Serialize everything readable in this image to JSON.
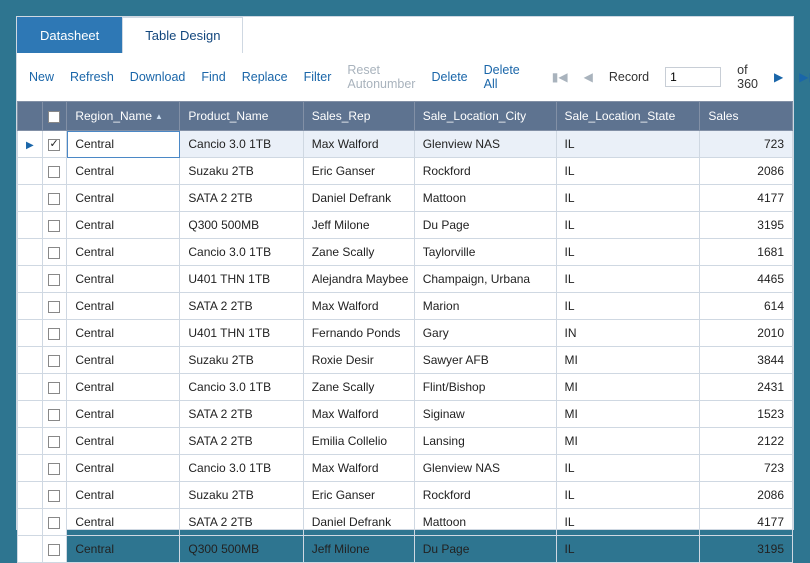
{
  "tabs": {
    "datasheet": "Datasheet",
    "design": "Table Design"
  },
  "toolbar": {
    "new": "New",
    "refresh": "Refresh",
    "download": "Download",
    "find": "Find",
    "replace": "Replace",
    "filter": "Filter",
    "reset": "Reset Autonumber",
    "delete": "Delete",
    "deleteAll": "Delete All",
    "record": "Record",
    "of": "of 360",
    "current": "1"
  },
  "columns": {
    "region": "Region_Name",
    "product": "Product_Name",
    "rep": "Sales_Rep",
    "city": "Sale_Location_City",
    "state": "Sale_Location_State",
    "sales": "Sales"
  },
  "rows": [
    {
      "region": "Central",
      "product": "Cancio 3.0 1TB",
      "rep": "Max Walford",
      "city": "Glenview NAS",
      "state": "IL",
      "sales": "723"
    },
    {
      "region": "Central",
      "product": "Suzaku 2TB",
      "rep": "Eric Ganser",
      "city": "Rockford",
      "state": "IL",
      "sales": "2086"
    },
    {
      "region": "Central",
      "product": "SATA 2 2TB",
      "rep": "Daniel Defrank",
      "city": "Mattoon",
      "state": "IL",
      "sales": "4177"
    },
    {
      "region": "Central",
      "product": "Q300 500MB",
      "rep": "Jeff Milone",
      "city": "Du Page",
      "state": "IL",
      "sales": "3195"
    },
    {
      "region": "Central",
      "product": "Cancio 3.0 1TB",
      "rep": "Zane Scally",
      "city": "Taylorville",
      "state": "IL",
      "sales": "1681"
    },
    {
      "region": "Central",
      "product": "U401 THN 1TB",
      "rep": "Alejandra Maybee",
      "city": "Champaign, Urbana",
      "state": "IL",
      "sales": "4465"
    },
    {
      "region": "Central",
      "product": "SATA 2 2TB",
      "rep": "Max Walford",
      "city": "Marion",
      "state": "IL",
      "sales": "614"
    },
    {
      "region": "Central",
      "product": "U401 THN 1TB",
      "rep": "Fernando Ponds",
      "city": "Gary",
      "state": "IN",
      "sales": "2010"
    },
    {
      "region": "Central",
      "product": "Suzaku 2TB",
      "rep": "Roxie Desir",
      "city": "Sawyer AFB",
      "state": "MI",
      "sales": "3844"
    },
    {
      "region": "Central",
      "product": "Cancio 3.0 1TB",
      "rep": "Zane Scally",
      "city": "Flint/Bishop",
      "state": "MI",
      "sales": "2431"
    },
    {
      "region": "Central",
      "product": "SATA 2 2TB",
      "rep": "Max Walford",
      "city": "Siginaw",
      "state": "MI",
      "sales": "1523"
    },
    {
      "region": "Central",
      "product": "SATA 2 2TB",
      "rep": "Emilia Collelio",
      "city": "Lansing",
      "state": "MI",
      "sales": "2122"
    },
    {
      "region": "Central",
      "product": "Cancio 3.0 1TB",
      "rep": "Max Walford",
      "city": "Glenview NAS",
      "state": "IL",
      "sales": "723"
    },
    {
      "region": "Central",
      "product": "Suzaku 2TB",
      "rep": "Eric Ganser",
      "city": "Rockford",
      "state": "IL",
      "sales": "2086"
    },
    {
      "region": "Central",
      "product": "SATA 2 2TB",
      "rep": "Daniel Defrank",
      "city": "Mattoon",
      "state": "IL",
      "sales": "4177"
    },
    {
      "region": "Central",
      "product": "Q300 500MB",
      "rep": "Jeff Milone",
      "city": "Du Page",
      "state": "IL",
      "sales": "3195"
    }
  ],
  "selectedRow": 0
}
